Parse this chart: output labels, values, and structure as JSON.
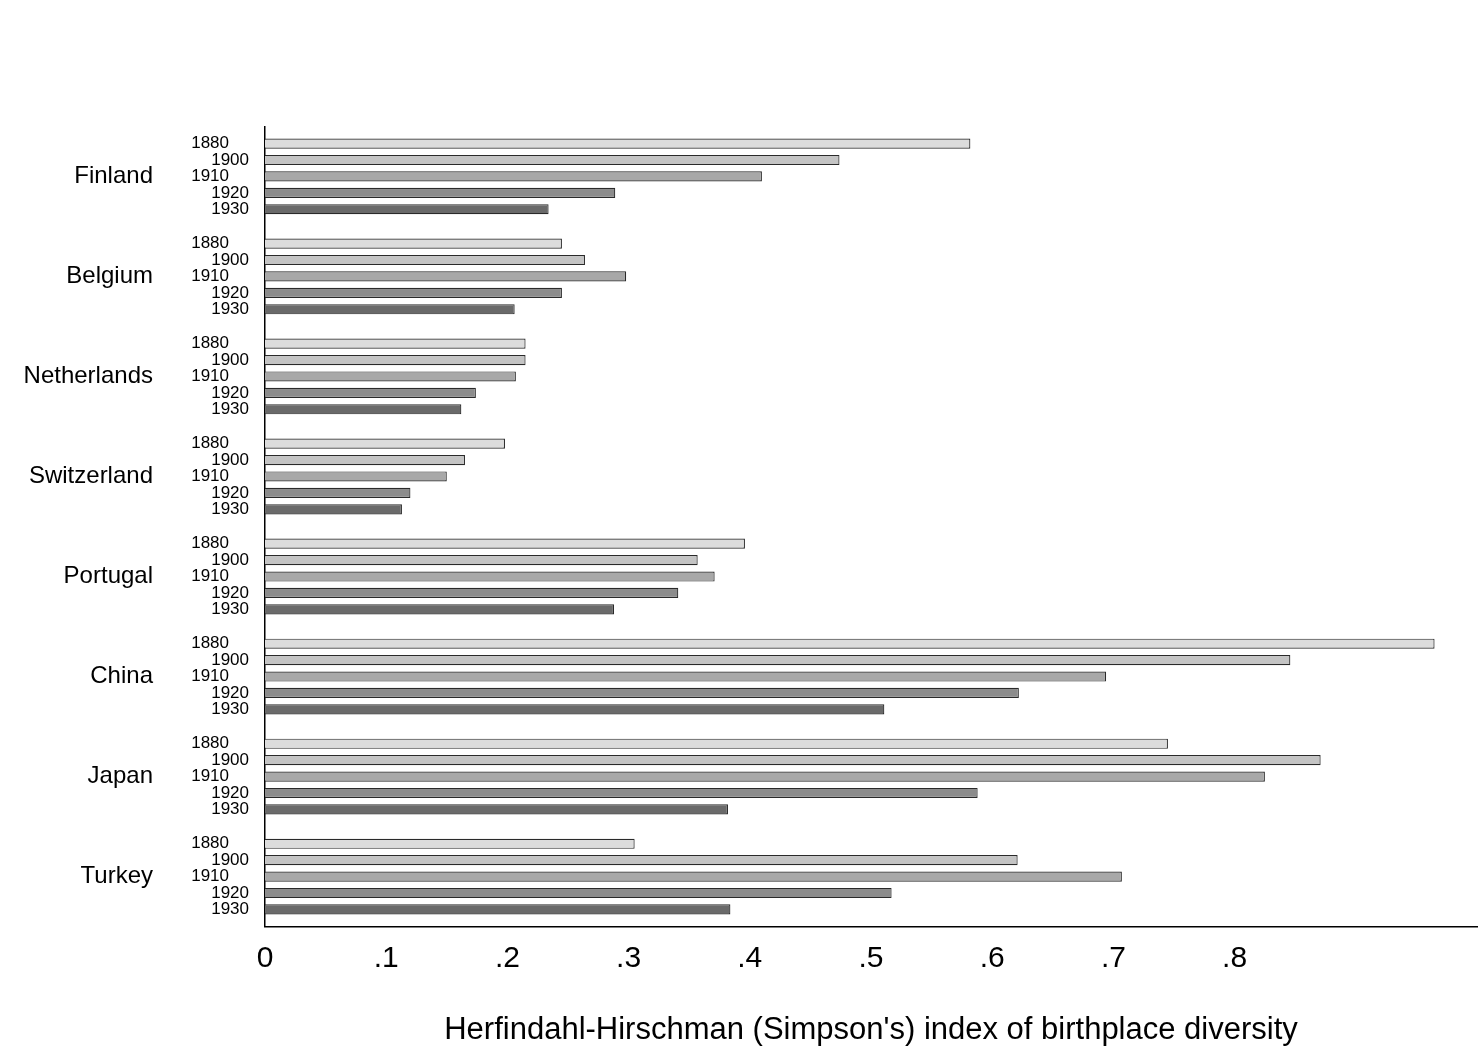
{
  "chart_data": {
    "type": "bar",
    "orientation": "horizontal",
    "xlabel": "Herfindahl-Hirschman (Simpson's) index of birthplace diversity",
    "categories": [
      "Finland",
      "Belgium",
      "Netherlands",
      "Switzerland",
      "Portugal",
      "China",
      "Japan",
      "Turkey"
    ],
    "series": [
      {
        "name": "1880",
        "color": "#dcdcdc",
        "values": [
          0.582,
          0.245,
          0.215,
          0.198,
          0.396,
          0.965,
          0.745,
          0.305
        ]
      },
      {
        "name": "1900",
        "color": "#c4c4c4",
        "values": [
          0.474,
          0.264,
          0.215,
          0.165,
          0.357,
          0.846,
          0.871,
          0.621
        ]
      },
      {
        "name": "1910",
        "color": "#a8a8a8",
        "values": [
          0.41,
          0.298,
          0.207,
          0.15,
          0.371,
          0.694,
          0.825,
          0.707
        ]
      },
      {
        "name": "1920",
        "color": "#8c8c8c",
        "values": [
          0.289,
          0.245,
          0.174,
          0.12,
          0.341,
          0.622,
          0.588,
          0.517
        ]
      },
      {
        "name": "1930",
        "color": "#6a6a6a",
        "values": [
          0.234,
          0.206,
          0.162,
          0.113,
          0.288,
          0.511,
          0.382,
          0.384
        ]
      }
    ],
    "xlim": [
      0,
      1
    ],
    "xticks": [
      {
        "value": 0,
        "label": "0"
      },
      {
        "value": 0.1,
        "label": ".1"
      },
      {
        "value": 0.2,
        "label": ".2"
      },
      {
        "value": 0.3,
        "label": ".3"
      },
      {
        "value": 0.4,
        "label": ".4"
      },
      {
        "value": 0.5,
        "label": ".5"
      },
      {
        "value": 0.6,
        "label": ".6"
      },
      {
        "value": 0.7,
        "label": ".7"
      },
      {
        "value": 0.8,
        "label": ".8"
      }
    ]
  }
}
